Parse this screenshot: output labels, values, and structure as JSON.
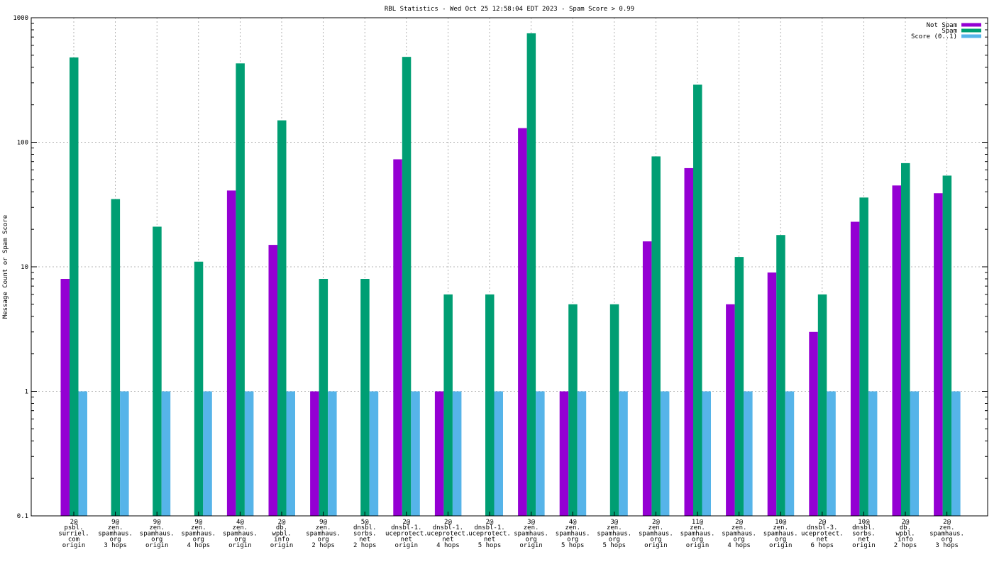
{
  "chart_data": {
    "type": "bar",
    "title": "RBL Statistics - Wed Oct 25 12:58:04 EDT 2023 - Spam Score > 0.99",
    "ylabel": "Message Count or Spam Score",
    "xlabel": "",
    "yscale": "log",
    "ylim": [
      0.1,
      1000
    ],
    "yticks": [
      "0.1",
      "1",
      "10",
      "100",
      "1000"
    ],
    "grid": true,
    "legend_position": "top-right",
    "categories": [
      [
        "2@",
        "psbl.",
        "surriel.",
        "com",
        "origin"
      ],
      [
        "9@",
        "zen.",
        "spamhaus.",
        "org",
        "3 hops"
      ],
      [
        "9@",
        "zen.",
        "spamhaus.",
        "org",
        "origin"
      ],
      [
        "9@",
        "zen.",
        "spamhaus.",
        "org",
        "4 hops"
      ],
      [
        "4@",
        "zen.",
        "spamhaus.",
        "org",
        "origin"
      ],
      [
        "2@",
        "db.",
        "wpbl.",
        "info",
        "origin"
      ],
      [
        "9@",
        "zen.",
        "spamhaus.",
        "org",
        "2 hops"
      ],
      [
        "5@",
        "dnsbl.",
        "sorbs.",
        "net",
        "2 hops"
      ],
      [
        "2@",
        "dnsbl-1.",
        "uceprotect.",
        "net",
        "origin"
      ],
      [
        "2@",
        "dnsbl-1.",
        "uceprotect.",
        "net",
        "4 hops"
      ],
      [
        "2@",
        "dnsbl-1.",
        "uceprotect.",
        "net",
        "5 hops"
      ],
      [
        "3@",
        "zen.",
        "spamhaus.",
        "org",
        "origin"
      ],
      [
        "4@",
        "zen.",
        "spamhaus.",
        "org",
        "5 hops"
      ],
      [
        "3@",
        "zen.",
        "spamhaus.",
        "org",
        "5 hops"
      ],
      [
        "2@",
        "zen.",
        "spamhaus.",
        "org",
        "origin"
      ],
      [
        "11@",
        "zen.",
        "spamhaus.",
        "org",
        "origin"
      ],
      [
        "2@",
        "zen.",
        "spamhaus.",
        "org",
        "4 hops"
      ],
      [
        "10@",
        "zen.",
        "spamhaus.",
        "org",
        "origin"
      ],
      [
        "2@",
        "dnsbl-3.",
        "uceprotect.",
        "net",
        "6 hops"
      ],
      [
        "10@",
        "dnsbl.",
        "sorbs.",
        "net",
        "origin"
      ],
      [
        "2@",
        "db.",
        "wpbl.",
        "info",
        "2 hops"
      ],
      [
        "2@",
        "zen.",
        "spamhaus.",
        "org",
        "3 hops"
      ]
    ],
    "series": [
      {
        "name": "Not Spam",
        "color": "#9400d3",
        "values": [
          8,
          null,
          null,
          null,
          41,
          15,
          1,
          null,
          73,
          1,
          null,
          130,
          1,
          null,
          16,
          62,
          5,
          9,
          3,
          23,
          45,
          39
        ]
      },
      {
        "name": "Spam",
        "color": "#009e73",
        "values": [
          480,
          35,
          21,
          11,
          430,
          150,
          8,
          8,
          485,
          6,
          6,
          750,
          5,
          5,
          77,
          290,
          12,
          18,
          6,
          36,
          68,
          54
        ]
      },
      {
        "name": "Score (0..1)",
        "color": "#56b4e9",
        "values": [
          1,
          1,
          1,
          1,
          1,
          1,
          1,
          1,
          1,
          1,
          1,
          1,
          1,
          1,
          1,
          1,
          1,
          1,
          1,
          1,
          1,
          1
        ]
      }
    ]
  }
}
